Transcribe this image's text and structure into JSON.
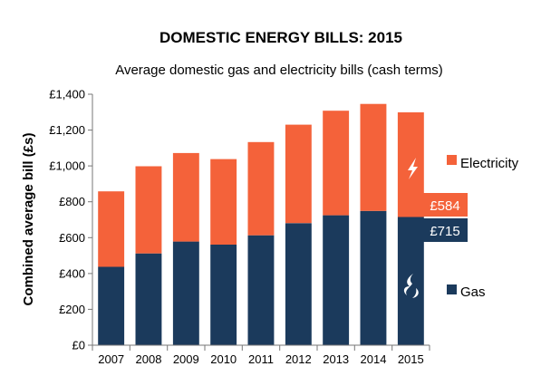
{
  "chart_data": {
    "type": "bar",
    "stacked": true,
    "title": "DOMESTIC ENERGY BILLS: 2015",
    "subtitle": "Average domestic gas and electricity bills (cash terms)",
    "ylabel": "Combined average bill (£s)",
    "xlabel": "",
    "categories": [
      "2007",
      "2008",
      "2009",
      "2010",
      "2011",
      "2012",
      "2013",
      "2014",
      "2015"
    ],
    "series": [
      {
        "name": "Gas",
        "color": "#1b3a5c",
        "values": [
          437,
          512,
          578,
          561,
          613,
          681,
          725,
          749,
          715
        ]
      },
      {
        "name": "Electricity",
        "color": "#f4623a",
        "values": [
          421,
          486,
          494,
          477,
          520,
          549,
          583,
          597,
          584
        ]
      }
    ],
    "ylim": [
      0,
      1400
    ],
    "yticks": [
      "£0",
      "£200",
      "£400",
      "£600",
      "£800",
      "£1,000",
      "£1,200",
      "£1,400"
    ],
    "ytick_values": [
      0,
      200,
      400,
      600,
      800,
      1000,
      1200,
      1400
    ],
    "grid": false,
    "legend": "right",
    "annotations": {
      "electricity_2015": "£584",
      "gas_2015": "£715"
    },
    "icons": {
      "electricity": "lightning-bolt-icon",
      "gas": "gas-flame-icon"
    }
  }
}
